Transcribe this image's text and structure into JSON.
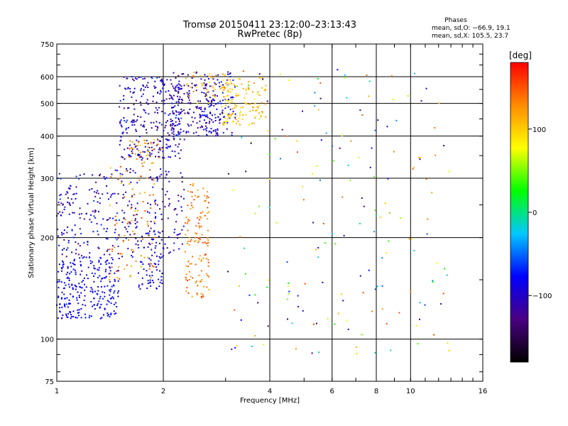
{
  "chart_data": {
    "type": "scatter",
    "title": "Tromsø 20150411 23:12:00–23:13:43",
    "subtitle": "RwPretec (8p)",
    "xlabel": "Frequency [MHz]",
    "ylabel": "Stationary phase Virtual Height [km]",
    "x_scale": "log",
    "y_scale": "log",
    "xlim": [
      1,
      16
    ],
    "ylim": [
      75,
      750
    ],
    "x_ticks": [
      "1",
      "2",
      "4",
      "6",
      "8",
      "10",
      "16"
    ],
    "y_ticks": [
      "75",
      "100",
      "200",
      "300",
      "400",
      "500",
      "600",
      "750"
    ],
    "x_gridlines": [
      2,
      4,
      6,
      8,
      10
    ],
    "y_gridlines": [
      100,
      200,
      300,
      400,
      500,
      600
    ],
    "stats": {
      "heading": "Phases",
      "line_o": "mean, sd,O: −66.9, 19.1",
      "line_x": "mean, sd,X: 105.5, 23.7"
    },
    "colorbar": {
      "label": "[deg]",
      "range": [
        -180,
        180
      ],
      "ticks": [
        "100",
        "0",
        "−100"
      ],
      "tick_values": [
        100,
        0,
        -100
      ],
      "colors": [
        "#000000",
        "#4b0082",
        "#0000ff",
        "#00c8ff",
        "#00ff00",
        "#ffff00",
        "#ff8c00",
        "#ff0000"
      ]
    },
    "series": [
      {
        "clusters": [
          {
            "f": [
              1.0,
              1.5
            ],
            "h": [
              115,
              175
            ],
            "phase": [
              -90,
              -70
            ],
            "n": 260
          },
          {
            "f": [
              1.0,
              1.7
            ],
            "h": [
              175,
              320
            ],
            "phase": [
              -140,
              -60
            ],
            "n": 220
          },
          {
            "f": [
              1.5,
              2.3
            ],
            "h": [
              340,
              600
            ],
            "phase": [
              -140,
              -60
            ],
            "n": 300
          },
          {
            "f": [
              2.1,
              2.9
            ],
            "h": [
              400,
              620
            ],
            "phase": [
              -140,
              -80
            ],
            "n": 180
          },
          {
            "f": [
              1.8,
              2.3
            ],
            "h": [
              175,
              320
            ],
            "phase": [
              -130,
              -70
            ],
            "n": 90
          },
          {
            "f": [
              2.6,
              3.2
            ],
            "h": [
              400,
              620
            ],
            "phase": [
              -110,
              -60
            ],
            "n": 80
          },
          {
            "f": [
              1.7,
              2.0
            ],
            "h": [
              140,
              210
            ],
            "phase": [
              -100,
              -70
            ],
            "n": 70
          }
        ]
      },
      {
        "clusters": [
          {
            "f": [
              1.4,
              1.9
            ],
            "h": [
              150,
              330
            ],
            "phase": [
              100,
              160
            ],
            "n": 90
          },
          {
            "f": [
              2.3,
              2.7
            ],
            "h": [
              130,
              290
            ],
            "phase": [
              110,
              160
            ],
            "n": 130
          },
          {
            "f": [
              2.9,
              3.9
            ],
            "h": [
              430,
              600
            ],
            "phase": [
              80,
              130
            ],
            "n": 140
          },
          {
            "f": [
              1.6,
              2.0
            ],
            "h": [
              330,
              390
            ],
            "phase": [
              100,
              150
            ],
            "n": 40
          },
          {
            "f": [
              2.3,
              3.0
            ],
            "h": [
              500,
              620
            ],
            "phase": [
              80,
              140
            ],
            "n": 40
          }
        ]
      },
      {
        "clusters": [
          {
            "f": [
              3.0,
              13.0
            ],
            "h": [
              90,
              640
            ],
            "phase": [
              -150,
              160
            ],
            "n": 190
          }
        ]
      }
    ]
  }
}
